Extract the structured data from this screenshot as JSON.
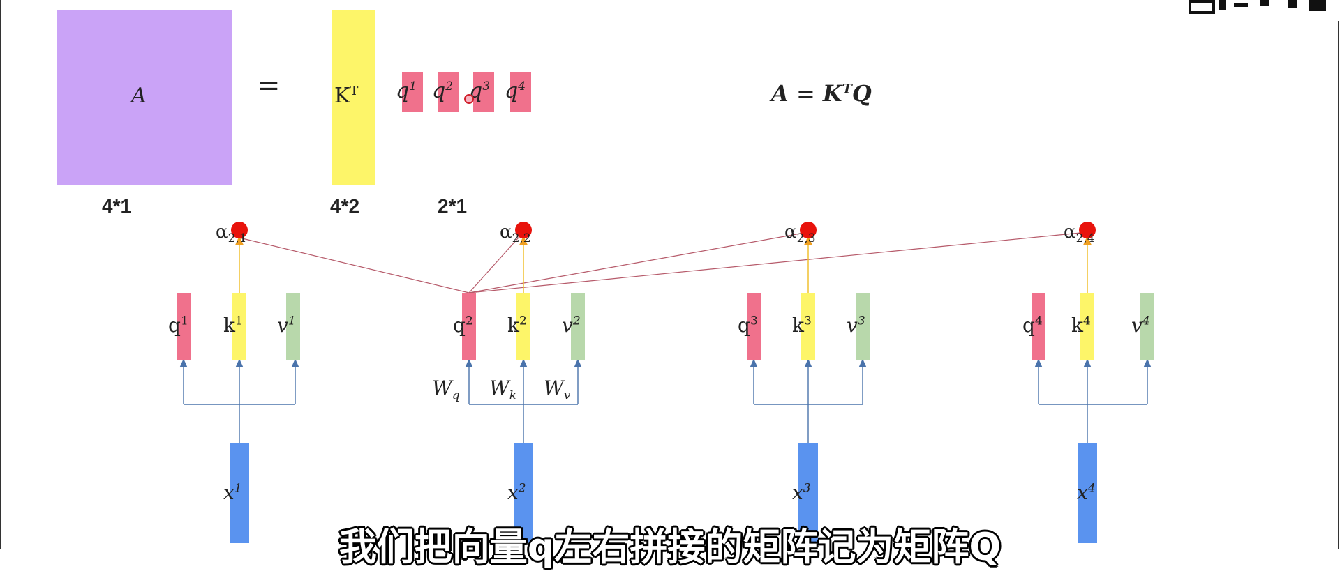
{
  "colors": {
    "matrix_a": "#caa3f7",
    "key": "#fdf569",
    "query": "#f0718c",
    "value": "#b8d8ab",
    "input": "#5a93ef",
    "score_node": "#e8130c",
    "score_line": "#b65a6a",
    "arrow": "#4a73ab"
  },
  "equation": {
    "a_symbol": "A",
    "equals": "=",
    "kt": "KT",
    "q_chunks": [
      "q1",
      "q2",
      "q3",
      "q4"
    ],
    "formula": "A = KTQ",
    "dims": [
      "4*1",
      "4*2",
      "2*1"
    ]
  },
  "columns": [
    {
      "q": "q1",
      "k": "k1",
      "v": "v1",
      "x": "x1",
      "alpha": "α2,1"
    },
    {
      "q": "q2",
      "k": "k2",
      "v": "v2",
      "x": "x2",
      "alpha": "α2,2"
    },
    {
      "q": "q3",
      "k": "k3",
      "v": "v3",
      "x": "x3",
      "alpha": "α2,3"
    },
    {
      "q": "q4",
      "k": "k4",
      "v": "v4",
      "x": "x4",
      "alpha": "α2,4"
    }
  ],
  "weights": {
    "wq": "Wq",
    "wk": "Wk",
    "wv": "Wv"
  },
  "subtitle": "我们把向量q左右拼接的矩阵记为矩阵Q"
}
